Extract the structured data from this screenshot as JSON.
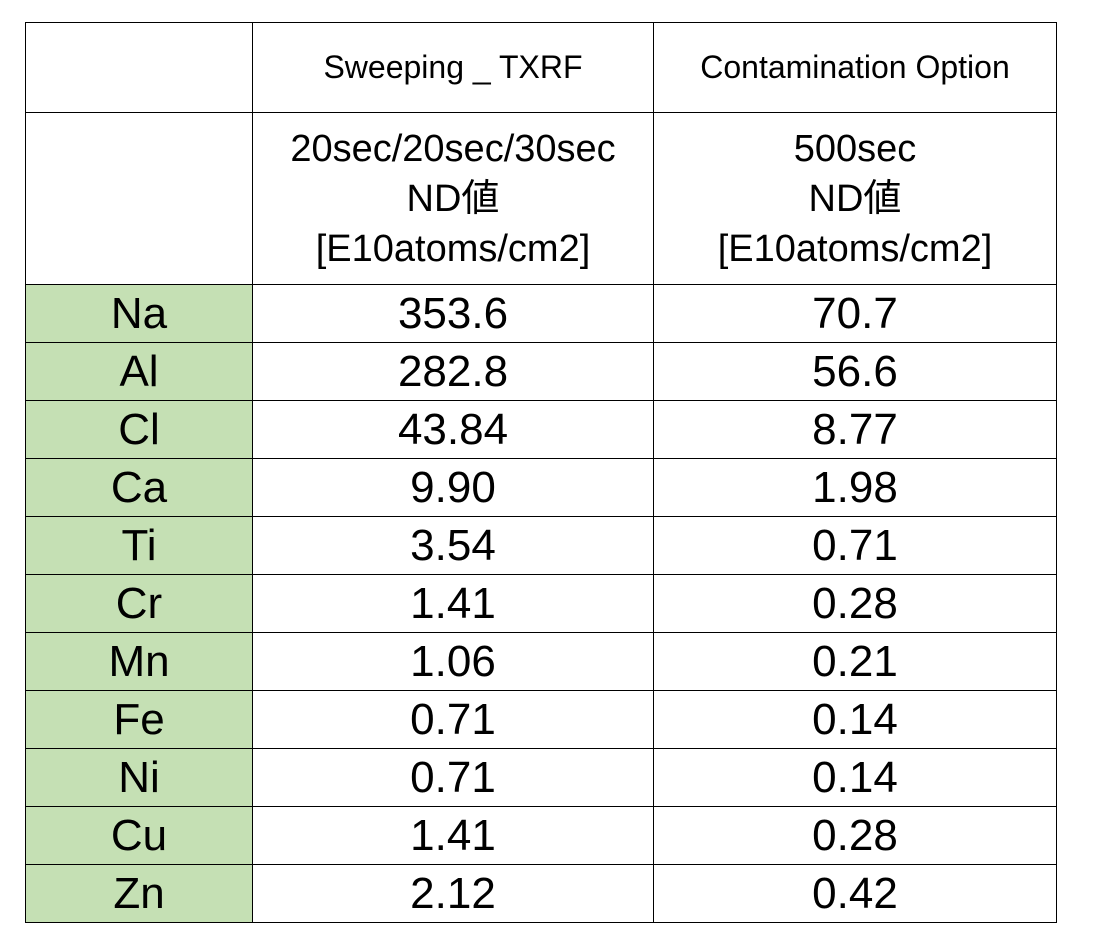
{
  "table": {
    "header_row1": {
      "col_element": "",
      "col_a": "Sweeping _ TXRF",
      "col_b": "Contamination Option"
    },
    "header_row2": {
      "col_element": "",
      "col_a_lines": [
        "20sec/20sec/30sec",
        "ND値",
        "[E10atoms/cm2]"
      ],
      "col_b_lines": [
        "500sec",
        "ND値",
        "[E10atoms/cm2]"
      ]
    },
    "rows": [
      {
        "element": "Na",
        "a": "353.6",
        "b": "70.7"
      },
      {
        "element": "Al",
        "a": "282.8",
        "b": "56.6"
      },
      {
        "element": "Cl",
        "a": "43.84",
        "b": "8.77"
      },
      {
        "element": "Ca",
        "a": "9.90",
        "b": "1.98"
      },
      {
        "element": "Ti",
        "a": "3.54",
        "b": "0.71"
      },
      {
        "element": "Cr",
        "a": "1.41",
        "b": "0.28"
      },
      {
        "element": "Mn",
        "a": "1.06",
        "b": "0.21"
      },
      {
        "element": "Fe",
        "a": "0.71",
        "b": "0.14"
      },
      {
        "element": "Ni",
        "a": "0.71",
        "b": "0.14"
      },
      {
        "element": "Cu",
        "a": "1.41",
        "b": "0.28"
      },
      {
        "element": "Zn",
        "a": "2.12",
        "b": "0.42"
      }
    ]
  },
  "colors": {
    "element_cell_bg": "#c5e0b4",
    "border": "#000000"
  }
}
